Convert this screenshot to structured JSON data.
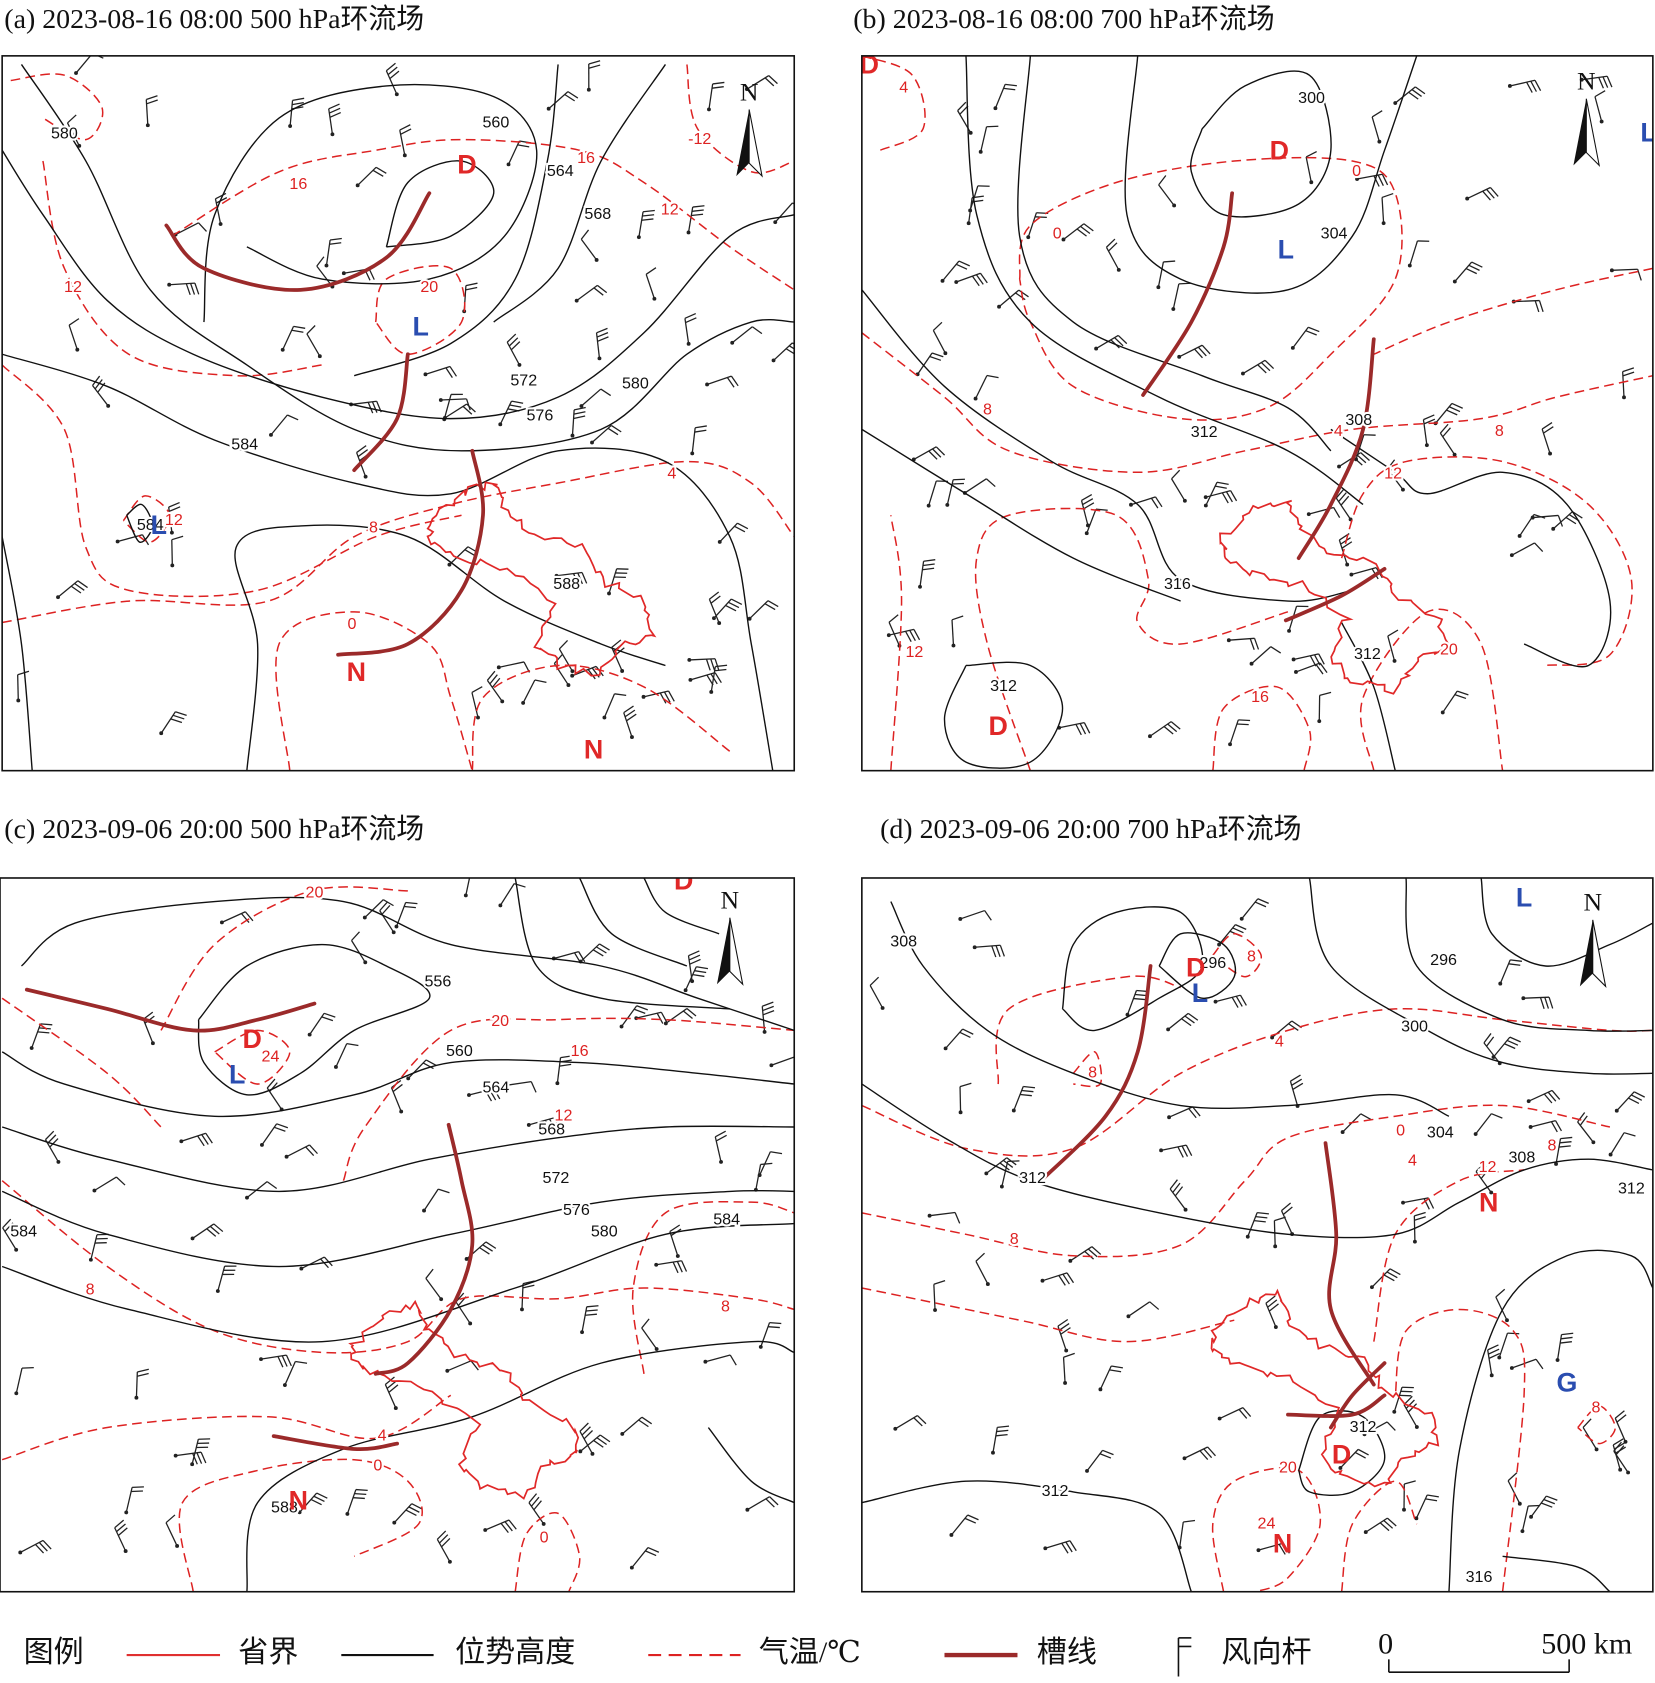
{
  "panels": [
    {
      "title": "(a) 2023-08-16 08:00 500 hPa环流场",
      "height_labels": [
        580,
        560,
        564,
        568,
        572,
        576,
        580,
        584,
        584,
        588
      ],
      "temperature_labels": [
        16,
        -12,
        16,
        12,
        20,
        12,
        12,
        8,
        4,
        0
      ],
      "systems": [
        "D",
        "L",
        "L",
        "N",
        "N"
      ]
    },
    {
      "title": "(b) 2023-08-16 08:00 700 hPa环流场",
      "height_labels": [
        300,
        304,
        308,
        312,
        316,
        312,
        312
      ],
      "temperature_labels": [
        4,
        0,
        0,
        8,
        4,
        8,
        12,
        12,
        16,
        20
      ],
      "systems": [
        "D",
        "D",
        "L",
        "L",
        "D"
      ]
    },
    {
      "title": "(c) 2023-09-06 20:00 500 hPa环流场",
      "height_labels": [
        556,
        560,
        564,
        568,
        572,
        576,
        580,
        584,
        584,
        588
      ],
      "temperature_labels": [
        20,
        20,
        16,
        12,
        24,
        8,
        8,
        4,
        0,
        0
      ],
      "systems": [
        "D",
        "D",
        "L",
        "N"
      ]
    },
    {
      "title": "(d) 2023-09-06 20:00 700 hPa环流场",
      "height_labels": [
        308,
        296,
        296,
        300,
        304,
        308,
        312,
        312,
        312,
        312,
        316
      ],
      "temperature_labels": [
        8,
        8,
        4,
        0,
        4,
        8,
        12,
        8,
        20,
        24,
        8
      ],
      "systems": [
        "L",
        "D",
        "L",
        "N",
        "G",
        "D",
        "N"
      ]
    }
  ],
  "compass_label": "N",
  "legend": {
    "title": "图例",
    "items": [
      "省界",
      "位势高度",
      "气温/℃",
      "槽线",
      "风向杆"
    ]
  },
  "scale": {
    "labels": [
      "0",
      "500 km"
    ]
  }
}
